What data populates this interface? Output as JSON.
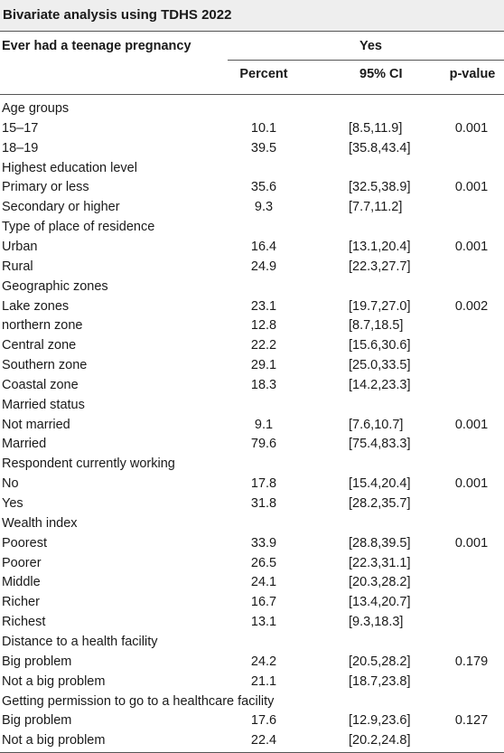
{
  "table": {
    "title": "Bivariate analysis using TDHS 2022",
    "stub_header": "Ever had a teenage pregnancy",
    "group_header": "Yes",
    "columns": [
      "Percent",
      "95% CI",
      "p-value"
    ],
    "rows": [
      {
        "label": "Age groups",
        "pct": "",
        "ci": "",
        "p": ""
      },
      {
        "label": "15–17",
        "pct": "10.1",
        "ci": "[8.5,11.9]",
        "p": "0.001"
      },
      {
        "label": "18–19",
        "pct": "39.5",
        "ci": "[35.8,43.4]",
        "p": ""
      },
      {
        "label": "Highest education level",
        "pct": "",
        "ci": "",
        "p": ""
      },
      {
        "label": "Primary or less",
        "pct": "35.6",
        "ci": "[32.5,38.9]",
        "p": "0.001"
      },
      {
        "label": "Secondary or higher",
        "pct": "9.3",
        "ci": "[7.7,11.2]",
        "p": ""
      },
      {
        "label": "Type of place of residence",
        "pct": "",
        "ci": "",
        "p": ""
      },
      {
        "label": "Urban",
        "pct": "16.4",
        "ci": "[13.1,20.4]",
        "p": "0.001"
      },
      {
        "label": "Rural",
        "pct": "24.9",
        "ci": "[22.3,27.7]",
        "p": ""
      },
      {
        "label": "Geographic zones",
        "pct": "",
        "ci": "",
        "p": ""
      },
      {
        "label": "Lake zones",
        "pct": "23.1",
        "ci": "[19.7,27.0]",
        "p": "0.002"
      },
      {
        "label": "northern zone",
        "pct": "12.8",
        "ci": "[8.7,18.5]",
        "p": ""
      },
      {
        "label": "Central zone",
        "pct": "22.2",
        "ci": "[15.6,30.6]",
        "p": ""
      },
      {
        "label": "Southern zone",
        "pct": "29.1",
        "ci": "[25.0,33.5]",
        "p": ""
      },
      {
        "label": "Coastal zone",
        "pct": "18.3",
        "ci": "[14.2,23.3]",
        "p": ""
      },
      {
        "label": "Married status",
        "pct": "",
        "ci": "",
        "p": ""
      },
      {
        "label": "Not married",
        "pct": "9.1",
        "ci": "[7.6,10.7]",
        "p": "0.001"
      },
      {
        "label": "Married",
        "pct": "79.6",
        "ci": "[75.4,83.3]",
        "p": ""
      },
      {
        "label": "Respondent currently working",
        "pct": "",
        "ci": "",
        "p": ""
      },
      {
        "label": "No",
        "pct": "17.8",
        "ci": "[15.4,20.4]",
        "p": "0.001"
      },
      {
        "label": "Yes",
        "pct": "31.8",
        "ci": "[28.2,35.7]",
        "p": ""
      },
      {
        "label": "Wealth index",
        "pct": "",
        "ci": "",
        "p": ""
      },
      {
        "label": "Poorest",
        "pct": "33.9",
        "ci": "[28.8,39.5]",
        "p": "0.001"
      },
      {
        "label": "Poorer",
        "pct": "26.5",
        "ci": "[22.3,31.1]",
        "p": ""
      },
      {
        "label": "Middle",
        "pct": "24.1",
        "ci": "[20.3,28.2]",
        "p": ""
      },
      {
        "label": "Richer",
        "pct": "16.7",
        "ci": "[13.4,20.7]",
        "p": ""
      },
      {
        "label": "Richest",
        "pct": "13.1",
        "ci": "[9.3,18.3]",
        "p": ""
      },
      {
        "label": "Distance to a health facility",
        "pct": "",
        "ci": "",
        "p": ""
      },
      {
        "label": "Big problem",
        "pct": "24.2",
        "ci": "[20.5,28.2]",
        "p": "0.179"
      },
      {
        "label": "Not a big problem",
        "pct": "21.1",
        "ci": "[18.7,23.8]",
        "p": ""
      },
      {
        "label": "Getting permission to go to a healthcare facility",
        "pct": "",
        "ci": "",
        "p": ""
      },
      {
        "label": "Big problem",
        "pct": "17.6",
        "ci": "[12.9,23.6]",
        "p": "0.127"
      },
      {
        "label": "Not a big problem",
        "pct": "22.4",
        "ci": "[20.2,24.8]",
        "p": ""
      }
    ]
  }
}
